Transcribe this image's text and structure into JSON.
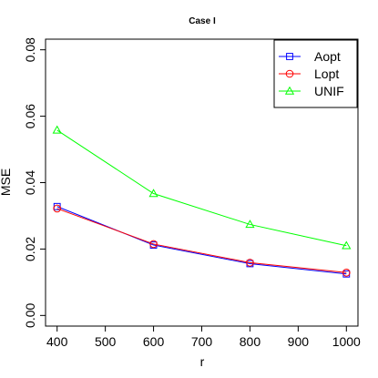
{
  "chart_data": {
    "type": "line",
    "title": "Case I",
    "xlabel": "r",
    "ylabel": "MSE",
    "x": [
      400,
      600,
      800,
      1000
    ],
    "xticks": [
      400,
      500,
      600,
      700,
      800,
      900,
      1000
    ],
    "yticks": [
      "0.00",
      "0.02",
      "0.04",
      "0.06",
      "0.08"
    ],
    "xlim": [
      376,
      1024
    ],
    "ylim": [
      -0.0032,
      0.0832
    ],
    "grid": false,
    "legend_position": "top-right",
    "series": [
      {
        "name": "Aopt",
        "color": "#0000ff",
        "marker": "square",
        "values": [
          0.0328,
          0.0212,
          0.0156,
          0.0125
        ]
      },
      {
        "name": "Lopt",
        "color": "#ff0000",
        "marker": "circle",
        "values": [
          0.0322,
          0.0215,
          0.0159,
          0.0129
        ]
      },
      {
        "name": "UNIF",
        "color": "#00ff00",
        "marker": "triangle",
        "values": [
          0.0558,
          0.0367,
          0.0274,
          0.021
        ]
      }
    ]
  }
}
